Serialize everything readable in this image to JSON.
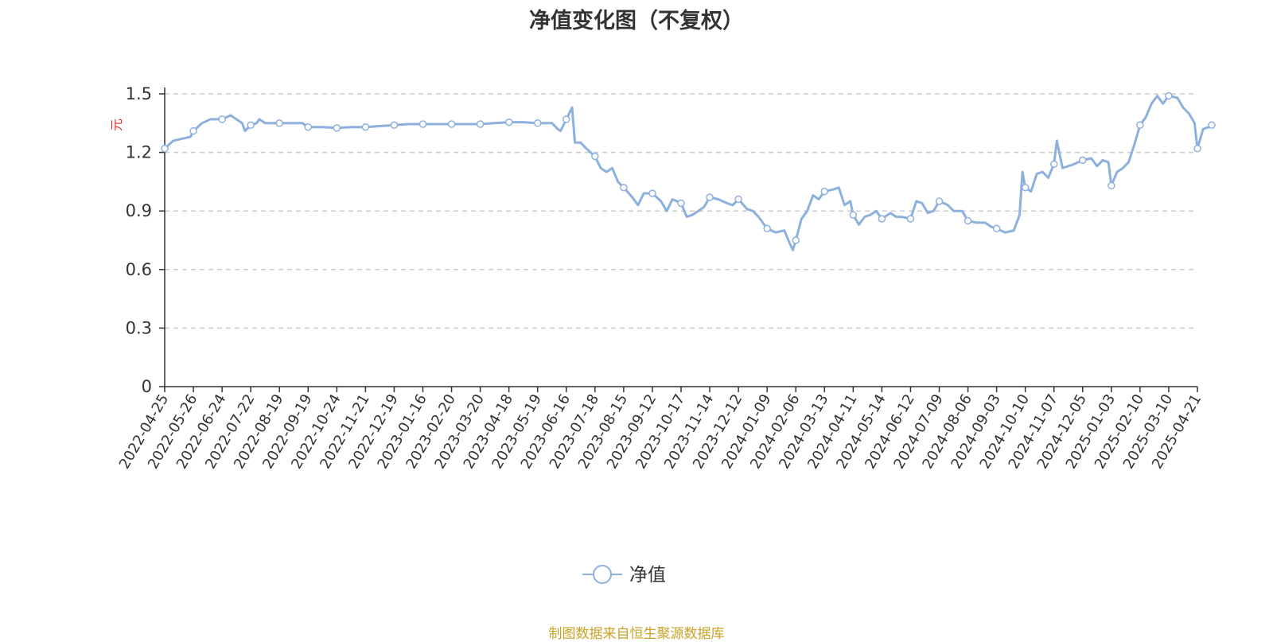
{
  "chart_data": {
    "type": "line",
    "title": "净值变化图（不复权）",
    "ylabel": "元",
    "ylim": [
      0,
      1.5
    ],
    "yticks": [
      "0",
      "0.3",
      "0.6",
      "0.9",
      "1.2",
      "1.5"
    ],
    "grid": true,
    "legend_position": "bottom-center",
    "x_ticks": [
      "2022-04-25",
      "2022-05-26",
      "2022-06-24",
      "2022-07-22",
      "2022-08-19",
      "2022-09-19",
      "2022-10-24",
      "2022-11-21",
      "2022-12-19",
      "2023-01-16",
      "2023-02-20",
      "2023-03-20",
      "2023-04-18",
      "2023-05-19",
      "2023-06-16",
      "2023-07-18",
      "2023-08-15",
      "2023-09-12",
      "2023-10-17",
      "2023-11-14",
      "2023-12-12",
      "2024-01-09",
      "2024-02-06",
      "2024-03-13",
      "2024-04-11",
      "2024-05-14",
      "2024-06-12",
      "2024-07-09",
      "2024-08-06",
      "2024-09-03",
      "2024-10-10",
      "2024-11-07",
      "2024-12-05",
      "2025-01-03",
      "2025-02-10",
      "2025-03-10",
      "2025-04-21"
    ],
    "series": [
      {
        "name": "净值",
        "color": "#8eb0dd",
        "marked_points": [
          [
            0,
            1.22
          ],
          [
            1,
            1.31
          ],
          [
            2,
            1.37
          ],
          [
            3,
            1.34
          ],
          [
            4,
            1.35
          ],
          [
            5,
            1.33
          ],
          [
            6,
            1.325
          ],
          [
            7,
            1.33
          ],
          [
            8,
            1.34
          ],
          [
            9,
            1.345
          ],
          [
            10,
            1.345
          ],
          [
            11,
            1.345
          ],
          [
            12,
            1.355
          ],
          [
            13,
            1.35
          ],
          [
            14,
            1.37
          ],
          [
            15,
            1.18
          ],
          [
            16,
            1.02
          ],
          [
            17,
            0.99
          ],
          [
            18,
            0.94
          ],
          [
            19,
            0.97
          ],
          [
            20,
            0.96
          ],
          [
            21,
            0.81
          ],
          [
            22,
            0.75
          ],
          [
            23,
            1.0
          ],
          [
            24,
            0.88
          ],
          [
            25,
            0.86
          ],
          [
            26,
            0.86
          ],
          [
            27,
            0.95
          ],
          [
            28,
            0.85
          ],
          [
            29,
            0.81
          ],
          [
            30,
            1.02
          ],
          [
            31,
            1.14
          ],
          [
            32,
            1.16
          ],
          [
            33,
            1.03
          ],
          [
            34,
            1.34
          ],
          [
            35,
            1.49
          ],
          [
            36,
            1.22
          ],
          [
            36.5,
            1.34
          ]
        ],
        "values": [
          [
            0,
            1.22
          ],
          [
            0.3,
            1.26
          ],
          [
            0.6,
            1.27
          ],
          [
            0.9,
            1.28
          ],
          [
            1,
            1.31
          ],
          [
            1.3,
            1.35
          ],
          [
            1.6,
            1.37
          ],
          [
            2,
            1.37
          ],
          [
            2.3,
            1.39
          ],
          [
            2.5,
            1.37
          ],
          [
            2.7,
            1.35
          ],
          [
            2.8,
            1.31
          ],
          [
            3,
            1.34
          ],
          [
            3.2,
            1.35
          ],
          [
            3.3,
            1.37
          ],
          [
            3.5,
            1.35
          ],
          [
            4,
            1.35
          ],
          [
            4.5,
            1.35
          ],
          [
            4.8,
            1.35
          ],
          [
            5,
            1.33
          ],
          [
            5.5,
            1.33
          ],
          [
            6,
            1.325
          ],
          [
            6.5,
            1.33
          ],
          [
            7,
            1.33
          ],
          [
            7.5,
            1.335
          ],
          [
            8,
            1.34
          ],
          [
            8.5,
            1.345
          ],
          [
            9,
            1.345
          ],
          [
            9.5,
            1.345
          ],
          [
            10,
            1.345
          ],
          [
            10.5,
            1.345
          ],
          [
            11,
            1.345
          ],
          [
            11.5,
            1.35
          ],
          [
            12,
            1.355
          ],
          [
            12.5,
            1.355
          ],
          [
            13,
            1.35
          ],
          [
            13.5,
            1.35
          ],
          [
            13.7,
            1.32
          ],
          [
            13.8,
            1.31
          ],
          [
            14,
            1.37
          ],
          [
            14.2,
            1.43
          ],
          [
            14.3,
            1.25
          ],
          [
            14.5,
            1.25
          ],
          [
            14.7,
            1.22
          ],
          [
            15,
            1.18
          ],
          [
            15.2,
            1.12
          ],
          [
            15.4,
            1.1
          ],
          [
            15.6,
            1.12
          ],
          [
            15.8,
            1.05
          ],
          [
            16,
            1.02
          ],
          [
            16.3,
            0.97
          ],
          [
            16.5,
            0.93
          ],
          [
            16.7,
            0.99
          ],
          [
            17,
            0.99
          ],
          [
            17.3,
            0.95
          ],
          [
            17.5,
            0.9
          ],
          [
            17.7,
            0.96
          ],
          [
            18,
            0.94
          ],
          [
            18.2,
            0.87
          ],
          [
            18.4,
            0.88
          ],
          [
            18.6,
            0.9
          ],
          [
            18.8,
            0.92
          ],
          [
            19,
            0.97
          ],
          [
            19.3,
            0.96
          ],
          [
            19.6,
            0.94
          ],
          [
            19.8,
            0.93
          ],
          [
            20,
            0.96
          ],
          [
            20.3,
            0.91
          ],
          [
            20.5,
            0.9
          ],
          [
            20.7,
            0.87
          ],
          [
            21,
            0.81
          ],
          [
            21.3,
            0.79
          ],
          [
            21.6,
            0.8
          ],
          [
            21.8,
            0.73
          ],
          [
            21.9,
            0.7
          ],
          [
            22,
            0.75
          ],
          [
            22.2,
            0.86
          ],
          [
            22.4,
            0.9
          ],
          [
            22.6,
            0.98
          ],
          [
            22.8,
            0.96
          ],
          [
            23,
            1.0
          ],
          [
            23.3,
            1.01
          ],
          [
            23.5,
            1.02
          ],
          [
            23.7,
            0.93
          ],
          [
            23.9,
            0.95
          ],
          [
            24,
            0.88
          ],
          [
            24.2,
            0.83
          ],
          [
            24.4,
            0.87
          ],
          [
            24.6,
            0.88
          ],
          [
            24.8,
            0.9
          ],
          [
            25,
            0.86
          ],
          [
            25.3,
            0.89
          ],
          [
            25.5,
            0.87
          ],
          [
            25.7,
            0.87
          ],
          [
            26,
            0.86
          ],
          [
            26.2,
            0.95
          ],
          [
            26.4,
            0.94
          ],
          [
            26.6,
            0.89
          ],
          [
            26.8,
            0.9
          ],
          [
            27,
            0.95
          ],
          [
            27.3,
            0.93
          ],
          [
            27.5,
            0.9
          ],
          [
            27.8,
            0.9
          ],
          [
            28,
            0.85
          ],
          [
            28.3,
            0.84
          ],
          [
            28.6,
            0.84
          ],
          [
            28.8,
            0.82
          ],
          [
            29,
            0.81
          ],
          [
            29.3,
            0.79
          ],
          [
            29.6,
            0.8
          ],
          [
            29.8,
            0.88
          ],
          [
            29.9,
            1.1
          ],
          [
            30,
            1.02
          ],
          [
            30.2,
            1.0
          ],
          [
            30.4,
            1.09
          ],
          [
            30.6,
            1.1
          ],
          [
            30.8,
            1.07
          ],
          [
            31,
            1.14
          ],
          [
            31.1,
            1.26
          ],
          [
            31.3,
            1.12
          ],
          [
            31.5,
            1.13
          ],
          [
            31.7,
            1.14
          ],
          [
            32,
            1.16
          ],
          [
            32.3,
            1.17
          ],
          [
            32.5,
            1.13
          ],
          [
            32.7,
            1.16
          ],
          [
            32.9,
            1.15
          ],
          [
            33,
            1.03
          ],
          [
            33.2,
            1.1
          ],
          [
            33.4,
            1.12
          ],
          [
            33.6,
            1.15
          ],
          [
            33.8,
            1.24
          ],
          [
            34,
            1.34
          ],
          [
            34.2,
            1.38
          ],
          [
            34.4,
            1.45
          ],
          [
            34.6,
            1.49
          ],
          [
            34.8,
            1.45
          ],
          [
            35,
            1.49
          ],
          [
            35.3,
            1.48
          ],
          [
            35.5,
            1.43
          ],
          [
            35.7,
            1.4
          ],
          [
            35.9,
            1.35
          ],
          [
            36,
            1.22
          ],
          [
            36.2,
            1.32
          ],
          [
            36.4,
            1.33
          ],
          [
            36.5,
            1.34
          ]
        ]
      }
    ]
  },
  "source_text": "制图数据来自恒生聚源数据库"
}
